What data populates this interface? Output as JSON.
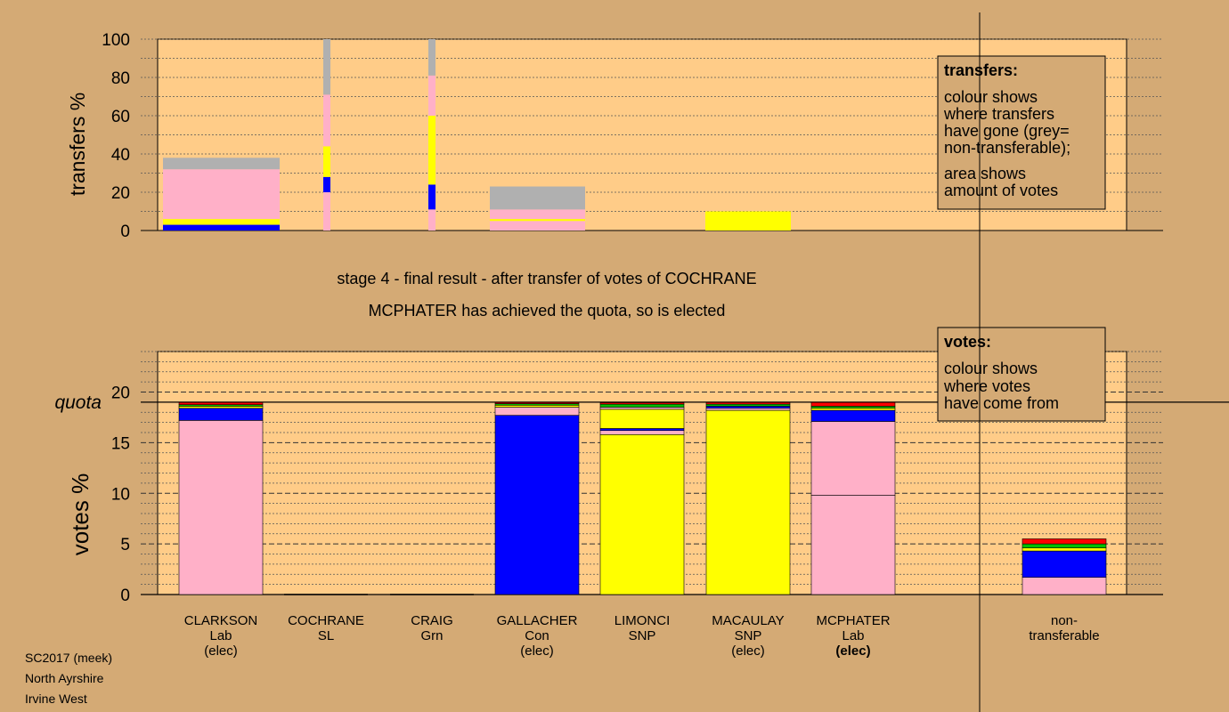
{
  "chart_data": [
    {
      "type": "bar",
      "panel": "transfers",
      "title": "",
      "xlabel": "",
      "ylabel": "transfers %",
      "ylim": [
        0,
        100
      ],
      "yticks": [
        0,
        20,
        40,
        60,
        80,
        100
      ],
      "stacked": true,
      "bar_width_shows": "amount of votes transferred",
      "series_colors": {
        "Con": "#0000ff",
        "SNP": "#ffff00",
        "Lab": "#ffb0c8",
        "Grn": "#00c000",
        "SL": "#ff0000",
        "non-transferable": "#b0b0b0"
      },
      "bars": [
        {
          "candidate": "CLARKSON",
          "segments": [
            {
              "party": "Con",
              "from": 0,
              "to": 3
            },
            {
              "party": "SNP",
              "from": 3,
              "to": 6
            },
            {
              "party": "Lab",
              "from": 6,
              "to": 32
            },
            {
              "party": "non-transferable",
              "from": 32,
              "to": 38
            }
          ]
        },
        {
          "candidate": "COCHRANE",
          "segments": [
            {
              "party": "Lab",
              "from": 0,
              "to": 20
            },
            {
              "party": "Con",
              "from": 20,
              "to": 28
            },
            {
              "party": "SNP",
              "from": 28,
              "to": 44
            },
            {
              "party": "Lab",
              "from": 44,
              "to": 71
            },
            {
              "party": "non-transferable",
              "from": 71,
              "to": 100
            }
          ]
        },
        {
          "candidate": "CRAIG",
          "segments": [
            {
              "party": "Lab",
              "from": 0,
              "to": 11
            },
            {
              "party": "Con",
              "from": 11,
              "to": 24
            },
            {
              "party": "SNP",
              "from": 24,
              "to": 60
            },
            {
              "party": "Lab",
              "from": 60,
              "to": 81
            },
            {
              "party": "non-transferable",
              "from": 81,
              "to": 100
            }
          ]
        },
        {
          "candidate": "GALLACHER",
          "segments": [
            {
              "party": "Lab",
              "from": 0,
              "to": 5
            },
            {
              "party": "SNP",
              "from": 5,
              "to": 6
            },
            {
              "party": "Lab",
              "from": 6,
              "to": 11
            },
            {
              "party": "non-transferable",
              "from": 11,
              "to": 23
            }
          ]
        },
        {
          "candidate": "MACAULAY",
          "segments": [
            {
              "party": "SNP",
              "from": 0,
              "to": 10
            }
          ]
        }
      ],
      "legend": {
        "title": "transfers:",
        "lines1": [
          "colour shows",
          "where transfers",
          "have gone (grey=",
          "non-transferable);"
        ],
        "lines2": [
          "area shows",
          "amount of votes"
        ],
        "position": "top-right"
      }
    },
    {
      "type": "bar",
      "panel": "votes",
      "title": "",
      "xlabel": "",
      "ylabel": "votes %",
      "ylim": [
        0,
        24
      ],
      "yticks": [
        0,
        5,
        10,
        15,
        20
      ],
      "quota": 19.0,
      "quota_label": "quota",
      "stacked": true,
      "bars": [
        {
          "candidate": "CLARKSON",
          "label1": "CLARKSON",
          "label2": "Lab",
          "label3": "(elec)",
          "segments": [
            {
              "party": "Lab",
              "from": 0,
              "to": 17.2
            },
            {
              "party": "Con",
              "from": 17.2,
              "to": 18.4
            },
            {
              "party": "SNP",
              "from": 18.4,
              "to": 18.6
            },
            {
              "party": "Grn",
              "from": 18.6,
              "to": 18.75
            },
            {
              "party": "SL",
              "from": 18.75,
              "to": 19.0
            }
          ]
        },
        {
          "candidate": "COCHRANE",
          "label1": "COCHRANE",
          "label2": "SL",
          "label3": "",
          "segments": []
        },
        {
          "candidate": "CRAIG",
          "label1": "CRAIG",
          "label2": "Grn",
          "label3": "",
          "segments": []
        },
        {
          "candidate": "GALLACHER",
          "label1": "GALLACHER",
          "label2": "Con",
          "label3": "(elec)",
          "segments": [
            {
              "party": "Con",
              "from": 0,
              "to": 17.7
            },
            {
              "party": "Lab",
              "from": 17.7,
              "to": 18.5
            },
            {
              "party": "SNP",
              "from": 18.5,
              "to": 18.7
            },
            {
              "party": "Grn",
              "from": 18.7,
              "to": 18.85
            },
            {
              "party": "SL",
              "from": 18.85,
              "to": 19.0
            }
          ]
        },
        {
          "candidate": "LIMONCI",
          "label1": "LIMONCI",
          "label2": "SNP",
          "label3": "",
          "segments": [
            {
              "party": "SNP",
              "from": 0,
              "to": 15.8
            },
            {
              "party": "Lab",
              "from": 15.8,
              "to": 16.2
            },
            {
              "party": "Con",
              "from": 16.2,
              "to": 16.4
            },
            {
              "party": "SNP",
              "from": 16.4,
              "to": 18.3
            },
            {
              "party": "Lab",
              "from": 18.3,
              "to": 18.5
            },
            {
              "party": "Grn",
              "from": 18.5,
              "to": 18.8
            },
            {
              "party": "SL",
              "from": 18.8,
              "to": 18.95
            }
          ]
        },
        {
          "candidate": "MACAULAY",
          "label1": "MACAULAY",
          "label2": "SNP",
          "label3": "(elec)",
          "segments": [
            {
              "party": "SNP",
              "from": 0,
              "to": 18.2
            },
            {
              "party": "Lab",
              "from": 18.2,
              "to": 18.4
            },
            {
              "party": "Con",
              "from": 18.4,
              "to": 18.6
            },
            {
              "party": "Grn",
              "from": 18.6,
              "to": 18.8
            },
            {
              "party": "SL",
              "from": 18.8,
              "to": 19.0
            }
          ]
        },
        {
          "candidate": "MCPHATER",
          "label1": "MCPHATER",
          "label2": "Lab",
          "label3": "(elec)",
          "bold3": true,
          "segments": [
            {
              "party": "Lab",
              "from": 0,
              "to": 9.8
            },
            {
              "party": "Lab",
              "from": 9.8,
              "to": 17.1
            },
            {
              "party": "Con",
              "from": 17.1,
              "to": 18.2
            },
            {
              "party": "SNP",
              "from": 18.2,
              "to": 18.4
            },
            {
              "party": "Grn",
              "from": 18.4,
              "to": 18.6
            },
            {
              "party": "SL",
              "from": 18.6,
              "to": 19.0
            }
          ]
        },
        {
          "candidate": "non-transferable",
          "label1": "non-",
          "label2": "transferable",
          "label3": "",
          "segments": [
            {
              "party": "Lab",
              "from": 0,
              "to": 1.7
            },
            {
              "party": "Con",
              "from": 1.7,
              "to": 4.3
            },
            {
              "party": "SNP",
              "from": 4.3,
              "to": 4.6
            },
            {
              "party": "Grn",
              "from": 4.6,
              "to": 5.0
            },
            {
              "party": "SL",
              "from": 5.0,
              "to": 5.5
            }
          ]
        }
      ],
      "legend": {
        "title": "votes:",
        "lines": [
          "colour shows",
          "where votes",
          "have come from"
        ],
        "position": "top-right"
      }
    }
  ],
  "stage_title": "stage 4 - final result - after transfer of votes of COCHRANE",
  "stage_subtitle": "MCPHATER has achieved the quota, so is elected",
  "footer": {
    "line1": "SC2017 (meek)",
    "line2": "North Ayrshire",
    "line3": "Irvine West"
  },
  "colors": {
    "background": "#d4aa75",
    "panel": "#ffcc88"
  }
}
